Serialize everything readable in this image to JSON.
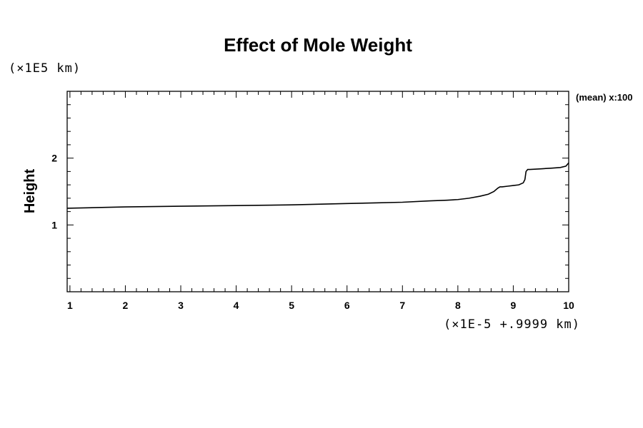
{
  "chart_data": {
    "type": "line",
    "title": "Effect of Mole Weight",
    "xlabel": "(×1E-5 +.9999 km)",
    "ylabel": "Height",
    "y_multiplier": "(×1E5 km)",
    "annotation": "(mean) x:100",
    "xlim": [
      0.95,
      10
    ],
    "ylim": [
      0.0,
      3.0
    ],
    "x_ticks": [
      1,
      2,
      3,
      4,
      5,
      6,
      7,
      8,
      9,
      10
    ],
    "y_ticks": [
      1,
      2
    ],
    "grid": false,
    "series": [
      {
        "x": [
          0.95,
          1.5,
          2,
          3,
          4,
          5,
          6,
          6.5,
          7,
          7.5,
          7.8,
          8,
          8.2,
          8.4,
          8.55,
          8.65,
          8.72,
          8.76,
          8.8,
          8.9,
          9.0,
          9.1,
          9.18,
          9.21,
          9.23,
          9.26,
          9.3,
          9.5,
          9.7,
          9.85,
          9.95,
          10
        ],
        "y": [
          1.25,
          1.26,
          1.27,
          1.28,
          1.29,
          1.3,
          1.32,
          1.33,
          1.34,
          1.36,
          1.37,
          1.38,
          1.4,
          1.43,
          1.46,
          1.5,
          1.55,
          1.57,
          1.57,
          1.58,
          1.59,
          1.6,
          1.63,
          1.68,
          1.8,
          1.83,
          1.83,
          1.84,
          1.85,
          1.86,
          1.88,
          1.93
        ]
      }
    ]
  }
}
